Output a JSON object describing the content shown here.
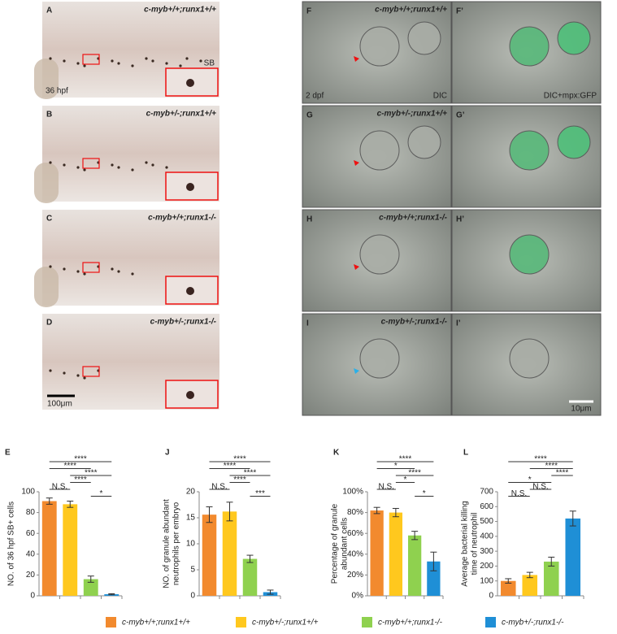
{
  "left_panels": [
    {
      "letter": "A",
      "genotype": "c-myb+/+;runx1+/+"
    },
    {
      "letter": "B",
      "genotype": "c-myb+/-;runx1+/+"
    },
    {
      "letter": "C",
      "genotype": "c-myb+/+;runx1-/-"
    },
    {
      "letter": "D",
      "genotype": "c-myb+/-;runx1-/-"
    }
  ],
  "left_notes": {
    "sb": "SB",
    "stage": "36 hpf",
    "scale": "100μm"
  },
  "right_panels": [
    {
      "letter": "F",
      "letter2": "F’",
      "genotype": "c-myb+/+;runx1+/+"
    },
    {
      "letter": "G",
      "letter2": "G’",
      "genotype": "c-myb+/-;runx1+/+"
    },
    {
      "letter": "H",
      "letter2": "H’",
      "genotype": "c-myb+/+;runx1-/-"
    },
    {
      "letter": "I",
      "letter2": "I’",
      "genotype": "c-myb+/-;runx1-/-"
    }
  ],
  "right_notes": {
    "stage": "2 dpf",
    "dic": "DIC",
    "gfp": "DIC+mpx:GFP",
    "scale": "10μm"
  },
  "legend": [
    {
      "name": "c-myb+/+;runx1+/+",
      "color": "#f28a2e"
    },
    {
      "name": "c-myb+/-;runx1+/+",
      "color": "#ffc81e"
    },
    {
      "name": "c-myb+/+;runx1-/-",
      "color": "#8fd14f"
    },
    {
      "name": "c-myb+/-;runx1-/-",
      "color": "#1f8fd6"
    }
  ],
  "chart_data": [
    {
      "type": "bar",
      "label": "E",
      "ylabel": [
        "NO. of 36 hpf SB+ cells"
      ],
      "values": [
        91,
        88,
        16,
        1.5
      ],
      "errors": [
        3,
        3,
        3,
        0.5
      ],
      "ylim": [
        0,
        100
      ],
      "yticks": [
        0,
        20,
        40,
        60,
        80,
        100
      ],
      "significance": [
        {
          "label": "****",
          "from": 0,
          "to": 3
        },
        {
          "label": "****",
          "from": 0,
          "to": 2
        },
        {
          "label": "****",
          "from": 1,
          "to": 3
        },
        {
          "label": "****",
          "from": 1,
          "to": 2
        },
        {
          "label": "N.S.",
          "from": 0,
          "to": 1
        },
        {
          "label": "*",
          "from": 2,
          "to": 3
        }
      ]
    },
    {
      "type": "bar",
      "label": "J",
      "ylabel": [
        "NO. of  granule abundant",
        "neutrophils per embryo"
      ],
      "values": [
        15.6,
        16.2,
        7.1,
        0.7
      ],
      "errors": [
        1.5,
        1.8,
        0.7,
        0.4
      ],
      "ylim": [
        0,
        20
      ],
      "yticks": [
        0,
        5,
        10,
        15,
        20
      ],
      "significance": [
        {
          "label": "****",
          "from": 0,
          "to": 3
        },
        {
          "label": "****",
          "from": 0,
          "to": 2
        },
        {
          "label": "****",
          "from": 1,
          "to": 3
        },
        {
          "label": "****",
          "from": 1,
          "to": 2
        },
        {
          "label": "N.S.",
          "from": 0,
          "to": 1
        },
        {
          "label": "***",
          "from": 2,
          "to": 3
        }
      ]
    },
    {
      "type": "bar",
      "label": "K",
      "ylabel": [
        "Percentage of granule",
        "abundant cells"
      ],
      "values": [
        82,
        80,
        58,
        33
      ],
      "errors": [
        3,
        4,
        4,
        9
      ],
      "ylim": [
        0,
        100
      ],
      "yticks": [
        {
          "value": 0,
          "label": "0%"
        },
        {
          "value": 20,
          "label": "20%"
        },
        {
          "value": 40,
          "label": "40%"
        },
        {
          "value": 60,
          "label": "60%"
        },
        {
          "value": 80,
          "label": "80%"
        },
        {
          "value": 100,
          "label": "100%"
        }
      ],
      "significance": [
        {
          "label": "****",
          "from": 0,
          "to": 3
        },
        {
          "label": "*",
          "from": 0,
          "to": 2
        },
        {
          "label": "****",
          "from": 1,
          "to": 3
        },
        {
          "label": "*",
          "from": 1,
          "to": 2
        },
        {
          "label": "N.S.",
          "from": 0,
          "to": 1
        },
        {
          "label": "*",
          "from": 2,
          "to": 3
        }
      ]
    },
    {
      "type": "bar",
      "label": "L",
      "ylabel": [
        "Average bacterial killing",
        "time of neutrophil"
      ],
      "values": [
        100,
        140,
        230,
        520
      ],
      "errors": [
        15,
        18,
        30,
        50
      ],
      "ylim": [
        0,
        700
      ],
      "yticks": [
        0,
        100,
        200,
        300,
        400,
        500,
        600,
        700
      ],
      "significance": [
        {
          "label": "****",
          "from": 0,
          "to": 3
        },
        {
          "label": "****",
          "from": 1,
          "to": 3
        },
        {
          "label": "****",
          "from": 2,
          "to": 3
        },
        {
          "label": "*",
          "from": 0,
          "to": 2
        },
        {
          "label": "N.S.",
          "from": 1,
          "to": 2
        },
        {
          "label": "N.S.",
          "from": 0,
          "to": 1
        }
      ]
    }
  ]
}
